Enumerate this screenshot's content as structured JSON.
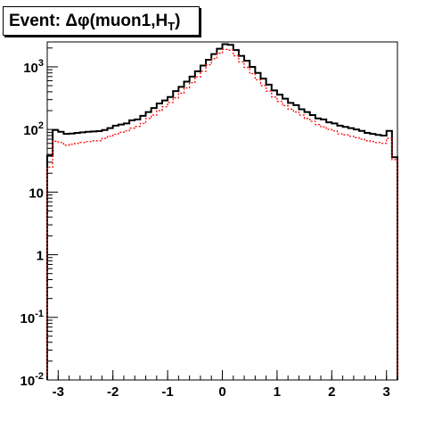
{
  "title": "Event: Δφ(muon1,H",
  "title_symbol": "T",
  "title_close": ")",
  "chart_data": {
    "type": "step",
    "title": "Event: Δφ(muon1,HT)",
    "xlabel": "",
    "ylabel": "",
    "xlim": [
      -3.2,
      3.2
    ],
    "ylim": [
      0.01,
      2500
    ],
    "yscale": "log",
    "x_ticks": [
      -3,
      -2,
      -1,
      0,
      1,
      2,
      3
    ],
    "y_ticks": [
      {
        "value": 0.01,
        "base": "10",
        "exp": "-2"
      },
      {
        "value": 0.1,
        "base": "10",
        "exp": "-1"
      },
      {
        "value": 1,
        "base": "1",
        "exp": ""
      },
      {
        "value": 10,
        "base": "10",
        "exp": ""
      },
      {
        "value": 100,
        "base": "10",
        "exp": "2"
      },
      {
        "value": 1000,
        "base": "10",
        "exp": "3"
      }
    ],
    "grid": false,
    "legend": "none",
    "bin_edges": [
      -3.2,
      -3.1,
      -3.0,
      -2.9,
      -2.8,
      -2.7,
      -2.6,
      -2.5,
      -2.4,
      -2.3,
      -2.2,
      -2.1,
      -2.0,
      -1.9,
      -1.8,
      -1.7,
      -1.6,
      -1.5,
      -1.4,
      -1.3,
      -1.2,
      -1.1,
      -1.0,
      -0.9,
      -0.8,
      -0.7,
      -0.6,
      -0.5,
      -0.4,
      -0.3,
      -0.2,
      -0.1,
      0.0,
      0.1,
      0.2,
      0.3,
      0.4,
      0.5,
      0.6,
      0.7,
      0.8,
      0.9,
      1.0,
      1.1,
      1.2,
      1.3,
      1.4,
      1.5,
      1.6,
      1.7,
      1.8,
      1.9,
      2.0,
      2.1,
      2.2,
      2.3,
      2.4,
      2.5,
      2.6,
      2.7,
      2.8,
      2.9,
      3.0,
      3.1,
      3.2
    ],
    "series": [
      {
        "color": "#000000",
        "style": "solid",
        "values": [
          38,
          98,
          92,
          85,
          86,
          88,
          90,
          92,
          93,
          94,
          98,
          105,
          115,
          120,
          125,
          140,
          145,
          165,
          190,
          220,
          260,
          290,
          330,
          410,
          480,
          580,
          700,
          850,
          1050,
          1300,
          1600,
          1950,
          2300,
          2250,
          1850,
          1500,
          1250,
          1000,
          800,
          650,
          520,
          420,
          360,
          310,
          265,
          245,
          210,
          190,
          170,
          150,
          145,
          130,
          125,
          115,
          110,
          105,
          100,
          95,
          88,
          85,
          82,
          80,
          95,
          36
        ]
      },
      {
        "color": "#ff0000",
        "style": "dotted",
        "values": [
          25,
          65,
          62,
          56,
          58,
          60,
          62,
          64,
          66,
          66,
          72,
          78,
          84,
          90,
          95,
          105,
          112,
          125,
          150,
          170,
          200,
          230,
          270,
          320,
          380,
          460,
          560,
          690,
          850,
          1080,
          1350,
          1650,
          1900,
          1850,
          1500,
          1200,
          980,
          780,
          620,
          500,
          410,
          330,
          280,
          240,
          210,
          190,
          170,
          150,
          135,
          120,
          110,
          100,
          95,
          85,
          82,
          78,
          74,
          70,
          66,
          64,
          62,
          60,
          72,
          33
        ]
      }
    ]
  }
}
